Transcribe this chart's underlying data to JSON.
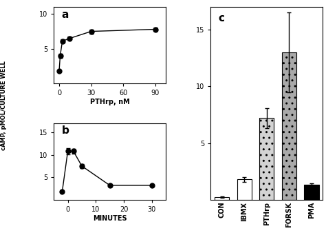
{
  "panel_a": {
    "x": [
      0,
      1,
      3,
      10,
      30,
      90
    ],
    "y": [
      1.8,
      4.0,
      6.1,
      6.5,
      7.5,
      7.8
    ],
    "yerr": [
      0.1,
      0.3,
      0.25,
      0.25,
      0.3,
      0.25
    ],
    "xlim": [
      -5,
      100
    ],
    "ylim": [
      0,
      11
    ],
    "yticks": [
      5,
      10
    ],
    "xticks": [
      0,
      30,
      60,
      90
    ],
    "xlabel": "PTHrp, nM",
    "label": "a"
  },
  "panel_b": {
    "x": [
      -2,
      0,
      2,
      5,
      15,
      30
    ],
    "y": [
      1.8,
      10.8,
      10.8,
      7.5,
      3.2,
      3.2
    ],
    "yerr": [
      0.15,
      0.7,
      0.5,
      0.5,
      0.25,
      0.2
    ],
    "xlim": [
      -5,
      35
    ],
    "ylim": [
      0,
      17
    ],
    "yticks": [
      5,
      10,
      15
    ],
    "xticks": [
      0,
      10,
      20,
      30
    ],
    "xlabel": "MINUTES",
    "label": "b"
  },
  "panel_c": {
    "categories": [
      "CON",
      "IBMX",
      "PTHrp",
      "FORSK",
      "PMA"
    ],
    "values": [
      0.25,
      1.8,
      7.2,
      13.0,
      1.3
    ],
    "yerr": [
      0.05,
      0.2,
      0.9,
      3.5,
      0.15
    ],
    "colors": [
      "white",
      "white",
      "lightgray",
      "darkgray",
      "black"
    ],
    "hatch": [
      "",
      "",
      "..",
      "..",
      ""
    ],
    "xlim": [
      -0.5,
      4.5
    ],
    "ylim": [
      0,
      17
    ],
    "yticks": [
      5,
      10,
      15
    ],
    "label": "c"
  },
  "ylabel": "cAMP, pMOL/CULTURE WELL"
}
